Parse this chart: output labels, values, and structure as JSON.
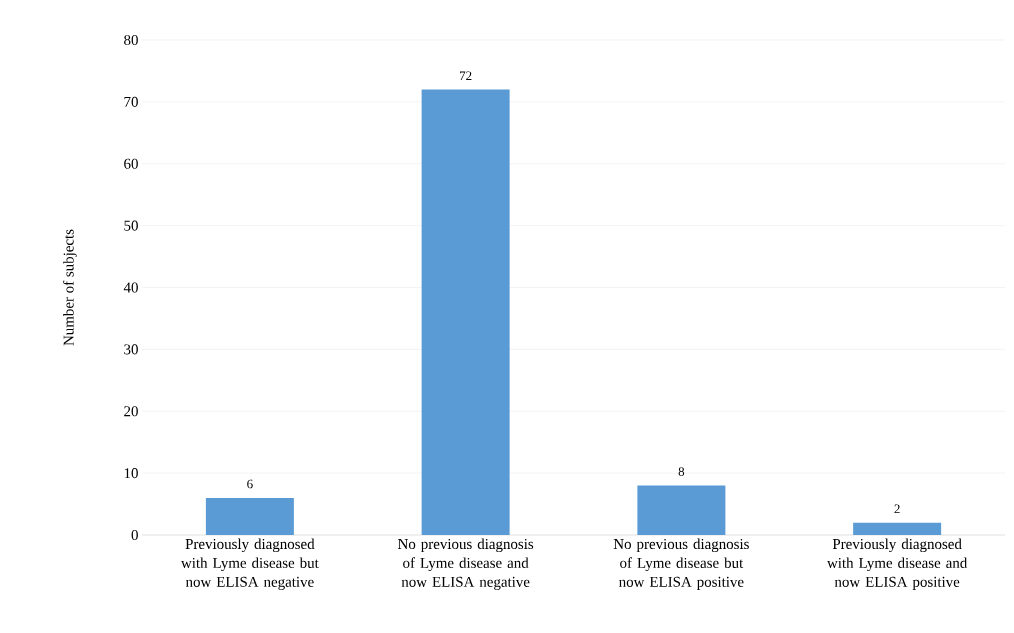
{
  "chart_data": {
    "type": "bar",
    "ylabel": "Number of subjects",
    "categories": [
      "Previously diagnosed with Lyme disease but now ELISA negative",
      "No previous diagnosis of Lyme disease and now ELISA negative",
      "No previous diagnosis of Lyme disease but now ELISA positive",
      "Previously diagnosed with Lyme disease and now ELISA positive"
    ],
    "values": [
      6,
      72,
      8,
      2
    ],
    "color": "#5b9bd5",
    "ylim": [
      0,
      80
    ],
    "yticks": [
      0,
      10,
      20,
      30,
      40,
      50,
      60,
      70,
      80
    ],
    "grid": "y",
    "data_labels": true
  }
}
